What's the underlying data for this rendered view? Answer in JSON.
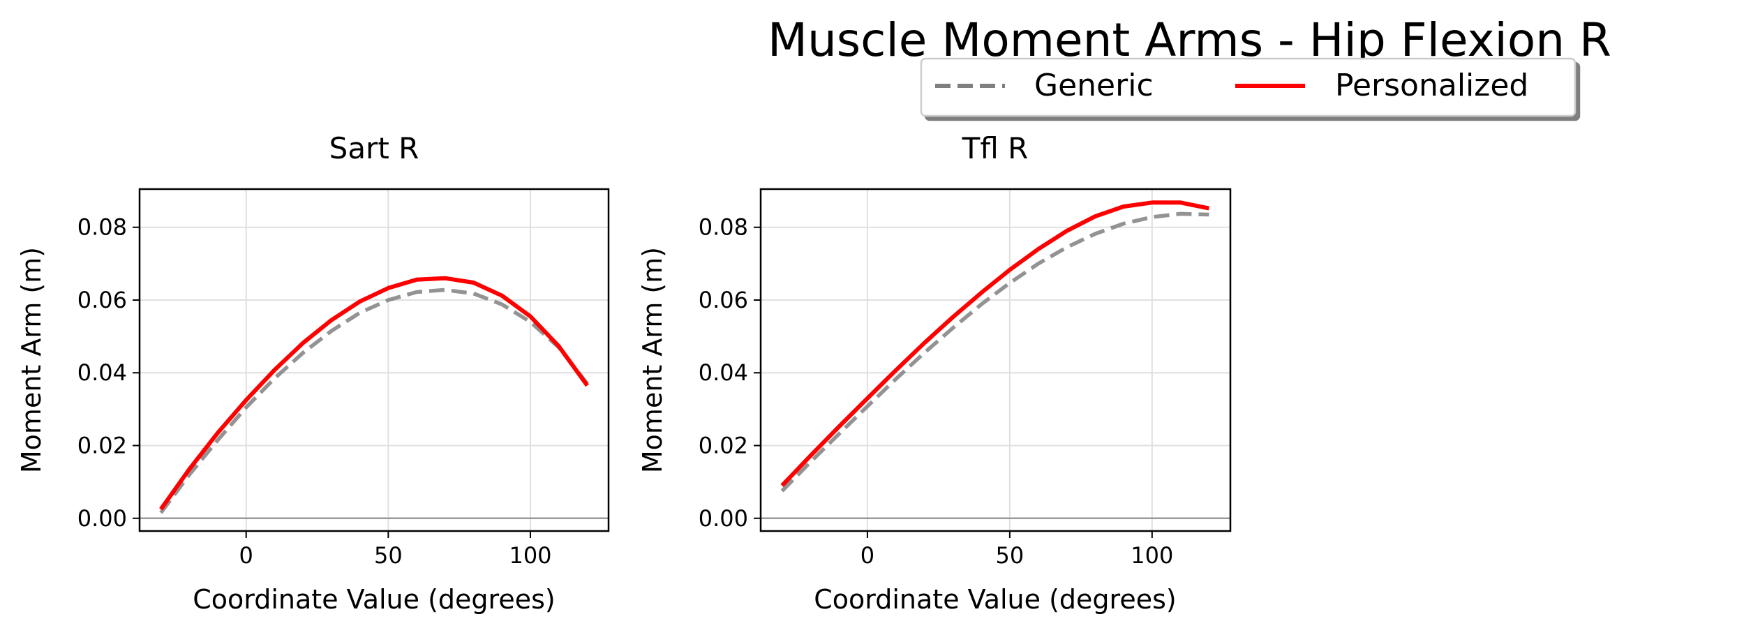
{
  "figure": {
    "title": "Muscle Moment Arms - Hip Flexion R",
    "legend": {
      "placement": "top-center",
      "entries": [
        {
          "label": "Generic",
          "color": "#808080",
          "style": "dashed"
        },
        {
          "label": "Personalized",
          "color": "#ff0000",
          "style": "solid"
        }
      ]
    }
  },
  "chart_data": [
    {
      "type": "line",
      "title": "Sart R",
      "xlabel": "Coordinate Value (degrees)",
      "ylabel": "Moment Arm (m)",
      "xlim": [
        -37.5,
        127.5
      ],
      "ylim": [
        -0.0035,
        0.0905
      ],
      "xticks": [
        0,
        50,
        100
      ],
      "yticks": [
        0.0,
        0.02,
        0.04,
        0.06,
        0.08
      ],
      "xtick_labels": [
        "0",
        "50",
        "100"
      ],
      "ytick_labels": [
        "0.00",
        "0.02",
        "0.04",
        "0.06",
        "0.08"
      ],
      "grid": true,
      "series": [
        {
          "name": "Generic",
          "color": "#808080",
          "style": "dashed",
          "x": [
            -30,
            -20,
            -10,
            0,
            10,
            20,
            30,
            40,
            50,
            60,
            70,
            80,
            90,
            100,
            110,
            120
          ],
          "y": [
            0.0015,
            0.012,
            0.0215,
            0.0305,
            0.0385,
            0.0455,
            0.0515,
            0.0565,
            0.06,
            0.0622,
            0.0628,
            0.0618,
            0.0588,
            0.054,
            0.047,
            0.037
          ]
        },
        {
          "name": "Personalized",
          "color": "#ff0000",
          "style": "solid",
          "x": [
            -30,
            -20,
            -10,
            0,
            10,
            20,
            30,
            40,
            50,
            60,
            70,
            80,
            90,
            100,
            110,
            120
          ],
          "y": [
            0.0025,
            0.0135,
            0.0235,
            0.0325,
            0.0408,
            0.0482,
            0.0545,
            0.0596,
            0.0633,
            0.0656,
            0.066,
            0.0648,
            0.0612,
            0.0555,
            0.0473,
            0.0365
          ]
        }
      ]
    },
    {
      "type": "line",
      "title": "Tfl R",
      "xlabel": "Coordinate Value (degrees)",
      "ylabel": "Moment Arm (m)",
      "xlim": [
        -37.5,
        127.5
      ],
      "ylim": [
        -0.0035,
        0.0905
      ],
      "xticks": [
        0,
        50,
        100
      ],
      "yticks": [
        0.0,
        0.02,
        0.04,
        0.06,
        0.08
      ],
      "xtick_labels": [
        "0",
        "50",
        "100"
      ],
      "ytick_labels": [
        "0.00",
        "0.02",
        "0.04",
        "0.06",
        "0.08"
      ],
      "grid": true,
      "series": [
        {
          "name": "Generic",
          "color": "#808080",
          "style": "dashed",
          "x": [
            -30,
            -20,
            -10,
            0,
            10,
            20,
            30,
            40,
            50,
            60,
            70,
            80,
            90,
            100,
            110,
            120
          ],
          "y": [
            0.0075,
            0.0155,
            0.0232,
            0.0308,
            0.0383,
            0.0455,
            0.0523,
            0.0588,
            0.0647,
            0.07,
            0.0745,
            0.0782,
            0.081,
            0.0828,
            0.0837,
            0.0835
          ]
        },
        {
          "name": "Personalized",
          "color": "#ff0000",
          "style": "solid",
          "x": [
            -30,
            -20,
            -10,
            0,
            10,
            20,
            30,
            40,
            50,
            60,
            70,
            80,
            90,
            100,
            110,
            120
          ],
          "y": [
            0.009,
            0.0172,
            0.0252,
            0.033,
            0.0407,
            0.0482,
            0.0553,
            0.062,
            0.0683,
            0.074,
            0.079,
            0.083,
            0.0857,
            0.0868,
            0.0868,
            0.0852
          ]
        }
      ]
    }
  ]
}
